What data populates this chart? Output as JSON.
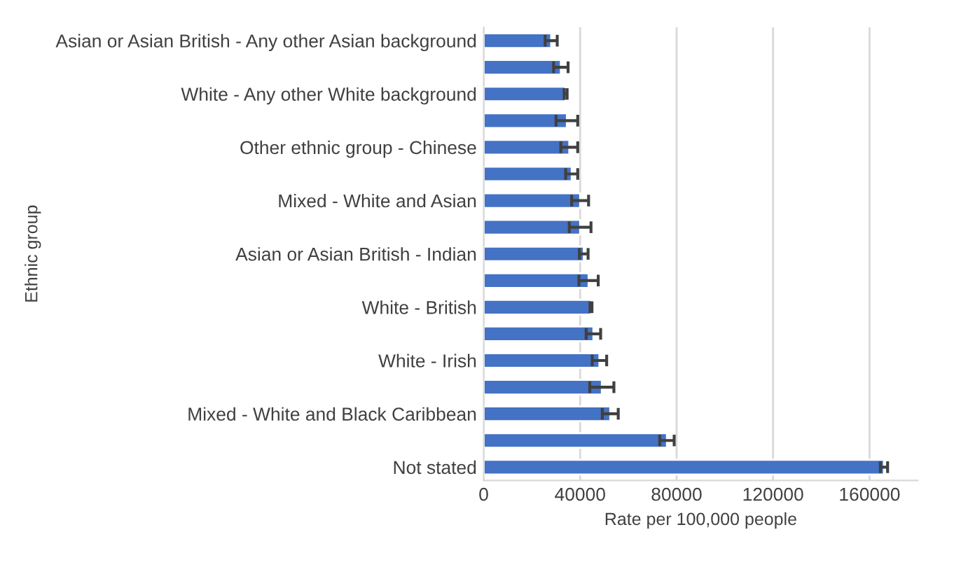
{
  "chart_data": {
    "type": "bar",
    "orientation": "horizontal",
    "xlabel": "Rate per 100,000 people",
    "ylabel": "Ethnic group",
    "categories": [
      "Asian or Asian British - Any other Asian background",
      null,
      "White - Any other White background",
      null,
      "Other ethnic group - Chinese",
      null,
      "Mixed - White and Asian",
      null,
      "Asian or Asian British - Indian",
      null,
      "White - British",
      null,
      "White - Irish",
      null,
      "Mixed - White and Black Caribbean",
      null,
      "Not stated"
    ],
    "values": [
      28000,
      32000,
      34000,
      34500,
      35500,
      36500,
      40000,
      40000,
      41500,
      43500,
      44500,
      45500,
      48000,
      49000,
      52500,
      76000,
      166000
    ],
    "errors": [
      2500,
      3000,
      600,
      4500,
      3500,
      2500,
      3500,
      4500,
      1800,
      4000,
      400,
      3000,
      3000,
      5000,
      3300,
      3000,
      1500
    ],
    "color": "#4472c4",
    "xlim": [
      0,
      180000
    ],
    "xticks": [
      0,
      40000,
      80000,
      120000,
      160000
    ],
    "grid": "x"
  }
}
